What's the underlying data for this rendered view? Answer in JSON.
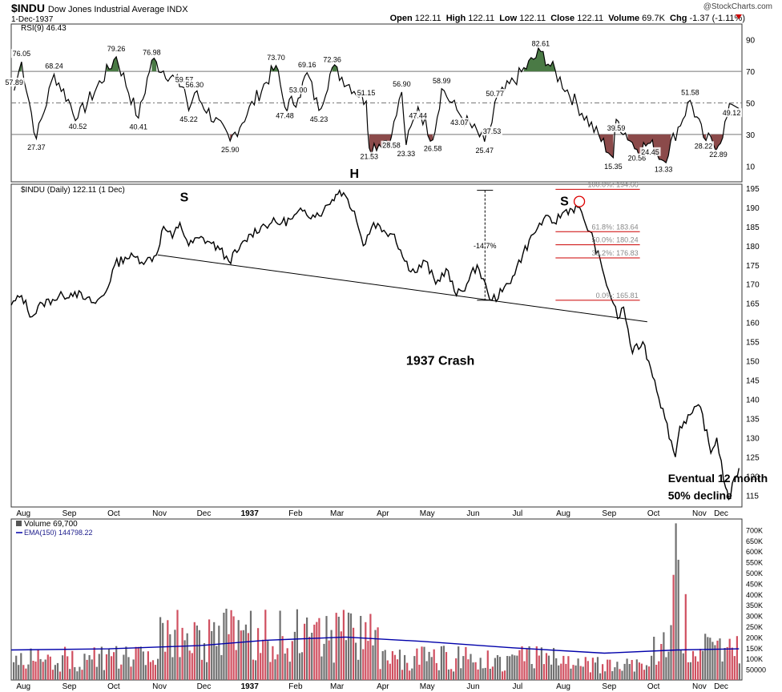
{
  "header": {
    "symbol": "$INDU",
    "name": "Dow Jones Industrial Average INDX",
    "date": "1-Dec-1937",
    "watermark": "@StockCharts.com",
    "open_label": "Open",
    "open": "122.11",
    "high_label": "High",
    "high": "122.11",
    "low_label": "Low",
    "low": "122.11",
    "close_label": "Close",
    "close": "122.11",
    "volume_label": "Volume",
    "volume": "69.7K",
    "chg_label": "Chg",
    "chg": "-1.37 (-1.11%)"
  },
  "colors": {
    "price": "#000000",
    "up_fill": "#4a7a45",
    "down_fill": "#8b4a4a",
    "fib_line": "#cc0000",
    "vol_up": "#707070",
    "vol_down": "#d05060",
    "ema": "#0000aa"
  },
  "chart_data": [
    {
      "type": "line",
      "panel": "RSI",
      "legend": "RSI(9) 46.43",
      "ylim": [
        0,
        100
      ],
      "y_ticks": [
        10,
        30,
        50,
        70,
        90
      ],
      "reference_lines": [
        30,
        50,
        70
      ],
      "annotations": [
        {
          "label": "76.05",
          "x": "1936-08-03",
          "y": 76.05
        },
        {
          "label": "57.89",
          "x": "1936-07-29",
          "y": 57.89
        },
        {
          "label": "27.37",
          "x": "1936-08-13",
          "y": 27.37
        },
        {
          "label": "68.24",
          "x": "1936-08-25",
          "y": 68.24
        },
        {
          "label": "40.52",
          "x": "1936-09-10",
          "y": 40.52
        },
        {
          "label": "79.26",
          "x": "1936-10-06",
          "y": 79.26
        },
        {
          "label": "40.41",
          "x": "1936-10-21",
          "y": 40.41
        },
        {
          "label": "76.98",
          "x": "1936-10-30",
          "y": 76.98
        },
        {
          "label": "59.57",
          "x": "1936-11-21",
          "y": 59.57
        },
        {
          "label": "45.22",
          "x": "1936-11-24",
          "y": 45.22
        },
        {
          "label": "56.30",
          "x": "1936-11-28",
          "y": 56.3
        },
        {
          "label": "25.90",
          "x": "1936-12-22",
          "y": 25.9
        },
        {
          "label": "73.70",
          "x": "1937-01-22",
          "y": 73.7
        },
        {
          "label": "47.48",
          "x": "1937-01-28",
          "y": 47.48
        },
        {
          "label": "53.00",
          "x": "1937-02-06",
          "y": 53.0
        },
        {
          "label": "69.16",
          "x": "1937-02-12",
          "y": 69.16
        },
        {
          "label": "45.23",
          "x": "1937-02-20",
          "y": 45.23
        },
        {
          "label": "72.36",
          "x": "1937-03-01",
          "y": 72.36
        },
        {
          "label": "51.15",
          "x": "1937-03-24",
          "y": 51.15
        },
        {
          "label": "21.53",
          "x": "1937-03-26",
          "y": 21.53
        },
        {
          "label": "28.58",
          "x": "1937-04-10",
          "y": 28.58
        },
        {
          "label": "56.90",
          "x": "1937-04-17",
          "y": 56.9
        },
        {
          "label": "23.33",
          "x": "1937-04-20",
          "y": 23.33
        },
        {
          "label": "47.44",
          "x": "1937-04-28",
          "y": 47.44
        },
        {
          "label": "26.58",
          "x": "1937-05-08",
          "y": 26.58
        },
        {
          "label": "58.99",
          "x": "1937-05-14",
          "y": 58.99
        },
        {
          "label": "43.07",
          "x": "1937-05-26",
          "y": 43.07
        },
        {
          "label": "25.47",
          "x": "1937-06-12",
          "y": 25.47
        },
        {
          "label": "37.53",
          "x": "1937-06-17",
          "y": 37.53
        },
        {
          "label": "50.77",
          "x": "1937-06-19",
          "y": 50.77
        },
        {
          "label": "82.61",
          "x": "1937-07-20",
          "y": 82.61
        },
        {
          "label": "15.35",
          "x": "1937-09-07",
          "y": 15.35
        },
        {
          "label": "39.59",
          "x": "1937-09-09",
          "y": 39.59
        },
        {
          "label": "20.56",
          "x": "1937-09-23",
          "y": 20.56
        },
        {
          "label": "24.45",
          "x": "1937-10-02",
          "y": 24.45
        },
        {
          "label": "13.33",
          "x": "1937-10-11",
          "y": 13.33
        },
        {
          "label": "51.58",
          "x": "1937-10-29",
          "y": 51.58
        },
        {
          "label": "28.22",
          "x": "1937-11-07",
          "y": 28.22
        },
        {
          "label": "22.89",
          "x": "1937-11-17",
          "y": 22.89
        },
        {
          "label": "49.12",
          "x": "1937-11-26",
          "y": 49.12
        }
      ]
    },
    {
      "type": "line",
      "panel": "Price",
      "title": "$INDU (Daily) 122.11 (1 Dec)",
      "ylim": [
        112,
        196
      ],
      "y_ticks": [
        115,
        120,
        125,
        130,
        135,
        140,
        145,
        150,
        155,
        160,
        165,
        170,
        175,
        180,
        185,
        190,
        195
      ],
      "x_tick_labels": [
        "Aug",
        "Sep",
        "Oct",
        "Nov",
        "Dec",
        "1937",
        "Feb",
        "Mar",
        "Apr",
        "May",
        "Jun",
        "Jul",
        "Aug",
        "Sep",
        "Oct",
        "Nov",
        "Dec"
      ],
      "series": [
        {
          "name": "$INDU",
          "points": [
            [
              "1936-07-27",
              164.5
            ],
            [
              "1936-08-03",
              167
            ],
            [
              "1936-08-10",
              161.5
            ],
            [
              "1936-08-17",
              165
            ],
            [
              "1936-08-24",
              166
            ],
            [
              "1936-08-31",
              167
            ],
            [
              "1936-09-08",
              168
            ],
            [
              "1936-09-15",
              166
            ],
            [
              "1936-09-22",
              165
            ],
            [
              "1936-09-29",
              168
            ],
            [
              "1936-10-05",
              175
            ],
            [
              "1936-10-12",
              177
            ],
            [
              "1936-10-19",
              177
            ],
            [
              "1936-10-26",
              176
            ],
            [
              "1936-11-02",
              177.5
            ],
            [
              "1936-11-07",
              185
            ],
            [
              "1936-11-13",
              182
            ],
            [
              "1936-11-18",
              186
            ],
            [
              "1936-11-24",
              180
            ],
            [
              "1936-12-01",
              182
            ],
            [
              "1936-12-08",
              181
            ],
            [
              "1936-12-15",
              179
            ],
            [
              "1936-12-21",
              176
            ],
            [
              "1936-12-28",
              179
            ],
            [
              "1937-01-05",
              183
            ],
            [
              "1937-01-12",
              185
            ],
            [
              "1937-01-19",
              186
            ],
            [
              "1937-01-26",
              186
            ],
            [
              "1937-02-02",
              187
            ],
            [
              "1937-02-09",
              189
            ],
            [
              "1937-02-16",
              188
            ],
            [
              "1937-02-23",
              189
            ],
            [
              "1937-03-01",
              192
            ],
            [
              "1937-03-06",
              194.4
            ],
            [
              "1937-03-10",
              193
            ],
            [
              "1937-03-16",
              189
            ],
            [
              "1937-03-22",
              180
            ],
            [
              "1937-03-29",
              186
            ],
            [
              "1937-04-05",
              184
            ],
            [
              "1937-04-12",
              183
            ],
            [
              "1937-04-19",
              176
            ],
            [
              "1937-04-26",
              173
            ],
            [
              "1937-05-03",
              176
            ],
            [
              "1937-05-10",
              170
            ],
            [
              "1937-05-17",
              174
            ],
            [
              "1937-05-24",
              167
            ],
            [
              "1937-05-31",
              170
            ],
            [
              "1937-06-07",
              175
            ],
            [
              "1937-06-14",
              168
            ],
            [
              "1937-06-17",
              165.8
            ],
            [
              "1937-06-24",
              168
            ],
            [
              "1937-07-01",
              172
            ],
            [
              "1937-07-08",
              178
            ],
            [
              "1937-07-15",
              183
            ],
            [
              "1937-07-22",
              187
            ],
            [
              "1937-07-29",
              186
            ],
            [
              "1937-08-05",
              189
            ],
            [
              "1937-08-14",
              190
            ],
            [
              "1937-08-18",
              187
            ],
            [
              "1937-08-25",
              181
            ],
            [
              "1937-09-01",
              172
            ],
            [
              "1937-09-07",
              165
            ],
            [
              "1937-09-10",
              161
            ],
            [
              "1937-09-14",
              164
            ],
            [
              "1937-09-20",
              152
            ],
            [
              "1937-09-27",
              155
            ],
            [
              "1937-10-05",
              145
            ],
            [
              "1937-10-12",
              135
            ],
            [
              "1937-10-19",
              125
            ],
            [
              "1937-10-22",
              133
            ],
            [
              "1937-10-29",
              136
            ],
            [
              "1937-11-05",
              138
            ],
            [
              "1937-11-12",
              126
            ],
            [
              "1937-11-16",
              130
            ],
            [
              "1937-11-22",
              117
            ],
            [
              "1937-11-24",
              114
            ],
            [
              "1937-11-29",
              120
            ],
            [
              "1937-12-01",
              122.11
            ]
          ]
        }
      ],
      "neckline": {
        "from": [
          "1936-11-03",
          177.6
        ],
        "to": [
          "1937-09-30",
          160.2
        ]
      },
      "fibonacci": [
        {
          "label": "100.0%: 194.66",
          "value": 194.66
        },
        {
          "label": "61.8%: 183.64",
          "value": 183.64
        },
        {
          "label": "50.0%: 180.24",
          "value": 180.24
        },
        {
          "label": "38.2%: 176.83",
          "value": 176.83
        },
        {
          "label": "0.0%: 165.81",
          "value": 165.81
        }
      ],
      "measure": {
        "label": "-14.7%",
        "from": 194.4,
        "to": 165.8,
        "x": "1937-06-15"
      },
      "text_annotations": [
        {
          "text": "S",
          "x": "1936-11-21",
          "y": 191.5
        },
        {
          "text": "H",
          "x": "1937-03-16",
          "y": 198
        },
        {
          "text": "S",
          "x": "1937-08-05",
          "y": 190.5
        },
        {
          "text": "1937 Crash",
          "x": "1937-04-20",
          "y": 149
        },
        {
          "text": "Eventual 12 month",
          "x": "1937-10-14",
          "y": 118.5
        },
        {
          "text": "50% decline",
          "x": "1937-10-14",
          "y": 114
        }
      ]
    },
    {
      "type": "bar",
      "panel": "Volume",
      "legend": [
        "Volume 69,700",
        "EMA(150) 144798.22"
      ],
      "ylim": [
        0,
        750000
      ],
      "y_tick_labels": [
        "50000",
        "100K",
        "150K",
        "200K",
        "250K",
        "300K",
        "350K",
        "400K",
        "450K",
        "500K",
        "550K",
        "600K",
        "650K",
        "700K"
      ],
      "y_tick_values": [
        50000,
        100000,
        150000,
        200000,
        250000,
        300000,
        350000,
        400000,
        450000,
        500000,
        550000,
        600000,
        650000,
        700000
      ],
      "ema_points": [
        [
          "1936-07-27",
          140000
        ],
        [
          "1936-10-01",
          145000
        ],
        [
          "1936-12-01",
          160000
        ],
        [
          "1937-01-15",
          185000
        ],
        [
          "1937-03-10",
          200000
        ],
        [
          "1937-05-01",
          180000
        ],
        [
          "1937-07-01",
          150000
        ],
        [
          "1937-09-01",
          125000
        ],
        [
          "1937-10-20",
          140000
        ],
        [
          "1937-12-01",
          145000
        ]
      ],
      "spikes": [
        [
          "1937-10-19",
          730000
        ],
        [
          "1937-10-20",
          560000
        ],
        [
          "1937-10-18",
          490000
        ],
        [
          "1937-10-25",
          400000
        ]
      ]
    }
  ]
}
